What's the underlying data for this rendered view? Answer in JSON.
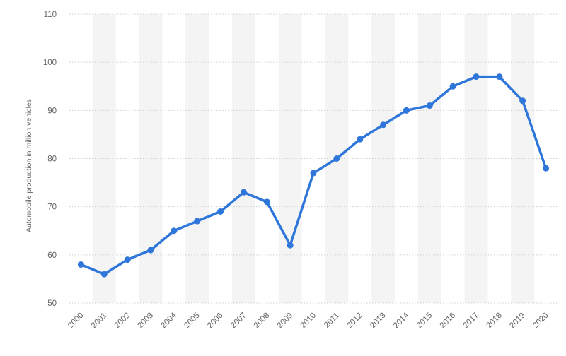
{
  "chart_data": {
    "type": "line",
    "title": "",
    "xlabel": "",
    "ylabel": "Automobile production in million vehicles",
    "ylim": [
      50,
      110
    ],
    "yticks": [
      50,
      60,
      70,
      80,
      90,
      100,
      110
    ],
    "grid": "horizontal dotted",
    "alternating_column_bands": true,
    "line_color": "#2f76db",
    "band_color": "#f4f4f4",
    "categories": [
      "2000",
      "2001",
      "2002",
      "2003",
      "2004",
      "2005",
      "2006",
      "2007",
      "2008",
      "2009",
      "2010",
      "2011",
      "2012",
      "2013",
      "2014",
      "2015",
      "2016",
      "2017",
      "2018",
      "2019",
      "2020"
    ],
    "series": [
      {
        "values": [
          58,
          56,
          59,
          61,
          65,
          67,
          69,
          73,
          71,
          62,
          77,
          80,
          84,
          87,
          90,
          91,
          95,
          97,
          97,
          92,
          78
        ]
      }
    ]
  }
}
